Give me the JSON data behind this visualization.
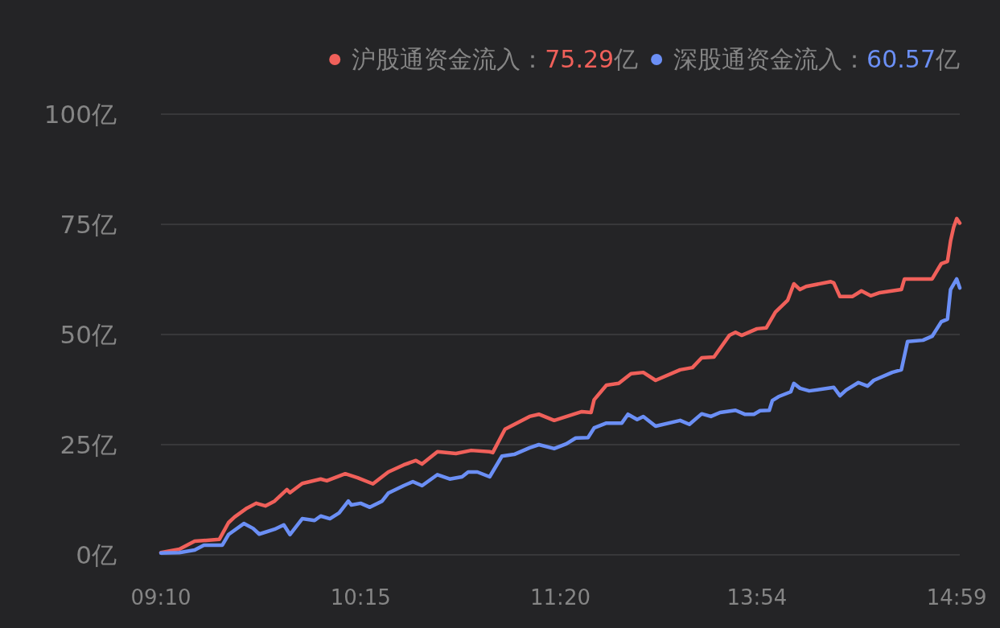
{
  "chart_data": {
    "type": "line",
    "categories": [
      "09:10",
      null,
      null,
      null,
      null,
      null,
      null,
      null,
      null,
      null,
      null,
      null,
      null,
      null,
      null,
      null,
      null,
      null,
      null,
      null,
      null,
      null,
      null,
      null,
      null,
      null,
      null,
      null,
      null,
      null,
      null,
      null,
      null,
      null,
      null,
      null,
      null,
      null,
      null,
      null,
      null,
      null,
      null,
      null,
      null,
      null,
      null,
      null,
      null,
      null,
      null,
      null,
      null,
      null,
      null,
      null,
      null,
      null,
      null,
      null,
      null,
      null,
      null,
      null,
      null,
      "10:15",
      null,
      null,
      null,
      null,
      null,
      null,
      null,
      null,
      null,
      null,
      null,
      null,
      null,
      null,
      null,
      null,
      null,
      null,
      null,
      null,
      null,
      null,
      null,
      null,
      null,
      null,
      null,
      null,
      null,
      null,
      null,
      null,
      null,
      null,
      null,
      null,
      null,
      null,
      null,
      null,
      null,
      null,
      null,
      null,
      null,
      null,
      null,
      null,
      null,
      null,
      null,
      null,
      null,
      null,
      null,
      null,
      null,
      null,
      null,
      null,
      null,
      null,
      null,
      null,
      "11:20",
      null,
      null,
      null,
      null,
      null,
      null,
      null,
      null,
      null,
      null,
      null,
      null,
      null,
      null,
      null,
      null,
      null,
      null,
      null,
      null,
      null,
      null,
      null,
      null,
      null,
      null,
      null,
      null,
      null,
      null,
      null,
      null,
      null,
      null,
      null,
      null,
      null,
      null,
      null,
      null,
      null,
      null,
      null,
      null,
      null,
      null,
      null,
      null,
      null,
      null,
      null,
      null,
      null,
      null,
      null,
      null,
      null,
      null,
      null,
      null,
      null,
      null,
      null,
      "13:54",
      null,
      null,
      null,
      null,
      null,
      null,
      null,
      null,
      null,
      null,
      null,
      null,
      null,
      null,
      null,
      null,
      null,
      null,
      null,
      null,
      null,
      null,
      null,
      null,
      null,
      null,
      null,
      null,
      null,
      null,
      null,
      null,
      null,
      null,
      null,
      null,
      null,
      null,
      null,
      null,
      null,
      null,
      null,
      null,
      null,
      null,
      null,
      null,
      null,
      null,
      null,
      null,
      null,
      null,
      null,
      null,
      null,
      null,
      null,
      null,
      null,
      null,
      null,
      null,
      "14:59",
      null
    ],
    "ylim": [
      0,
      100
    ],
    "yticks": [
      {
        "value": 0,
        "label": "0亿"
      },
      {
        "value": 25,
        "label": "25亿"
      },
      {
        "value": 50,
        "label": "50亿"
      },
      {
        "value": 75,
        "label": "75亿"
      },
      {
        "value": 100,
        "label": "100亿"
      }
    ],
    "grid": "y",
    "legend": "top right",
    "annotations": [
      "75.29亿",
      "60.57亿"
    ],
    "series": [
      {
        "name": "沪股通资金流入：",
        "color": "#f0605a",
        "values": [
          0.5,
          null,
          null,
          null,
          null,
          null,
          1.3,
          null,
          null,
          null,
          null,
          3.1,
          null,
          null,
          null,
          null,
          null,
          null,
          null,
          3.5,
          null,
          null,
          7.3,
          null,
          8.6,
          null,
          null,
          null,
          10.6,
          null,
          null,
          11.7,
          null,
          null,
          11.1,
          null,
          null,
          12.2,
          null,
          null,
          null,
          14.8,
          14.1,
          null,
          null,
          null,
          16.2,
          null,
          null,
          null,
          null,
          null,
          17.2,
          null,
          16.8,
          null,
          null,
          null,
          null,
          null,
          18.4,
          null,
          null,
          null,
          17.5,
          null,
          null,
          null,
          null,
          16.1,
          null,
          null,
          null,
          null,
          18.8,
          null,
          null,
          null,
          null,
          20.4,
          null,
          null,
          null,
          21.4,
          null,
          20.6,
          null,
          null,
          null,
          null,
          23.4,
          null,
          null,
          null,
          null,
          null,
          23.0,
          null,
          null,
          null,
          null,
          23.7,
          null,
          null,
          null,
          null,
          null,
          23.4,
          23.2,
          null,
          null,
          null,
          28.5,
          null,
          null,
          null,
          null,
          null,
          null,
          null,
          31.4,
          null,
          null,
          31.9,
          null,
          null,
          null,
          null,
          30.5,
          null,
          null,
          null,
          null,
          null,
          null,
          null,
          null,
          32.5,
          null,
          null,
          32.3,
          35.2,
          null,
          null,
          null,
          38.5,
          null,
          null,
          null,
          38.9,
          null,
          null,
          null,
          41.1,
          null,
          null,
          null,
          41.4,
          null,
          null,
          null,
          39.6,
          null,
          null,
          null,
          null,
          null,
          null,
          null,
          42.0,
          null,
          null,
          null,
          42.5,
          null,
          null,
          44.7,
          null,
          null,
          null,
          44.9,
          null,
          null,
          null,
          null,
          49.8,
          null,
          50.5,
          null,
          49.8,
          null,
          null,
          null,
          null,
          51.3,
          null,
          null,
          51.5,
          null,
          null,
          55.1,
          null,
          null,
          null,
          57.8,
          null,
          61.5,
          null,
          60.2,
          null,
          60.9,
          null,
          null,
          null,
          null,
          null,
          null,
          null,
          62.0,
          61.7,
          null,
          58.6,
          null,
          null,
          null,
          58.6,
          null,
          null,
          59.9,
          null,
          null,
          58.8,
          null,
          null,
          59.5,
          null,
          null,
          null,
          null,
          null,
          null,
          60.2,
          62.6,
          null,
          null,
          null,
          null,
          null,
          null,
          null,
          null,
          62.6,
          null,
          null,
          66.1,
          null,
          66.6,
          71.2,
          74.3,
          76.3,
          75.29
        ]
      },
      {
        "name": "深股通资金流入：",
        "color": "#6b8ff5",
        "values": [
          0.4,
          null,
          null,
          null,
          null,
          null,
          0.5,
          null,
          null,
          null,
          null,
          1.1,
          null,
          null,
          2.2,
          null,
          null,
          null,
          null,
          null,
          2.2,
          null,
          4.6,
          null,
          null,
          null,
          null,
          7.1,
          null,
          null,
          6.0,
          null,
          4.7,
          null,
          null,
          null,
          null,
          5.8,
          null,
          null,
          6.8,
          null,
          4.6,
          null,
          null,
          null,
          8.2,
          null,
          null,
          null,
          7.8,
          null,
          8.8,
          null,
          null,
          8.2,
          null,
          null,
          9.5,
          null,
          null,
          12.2,
          11.3,
          null,
          null,
          11.7,
          null,
          null,
          10.8,
          null,
          null,
          null,
          12.2,
          null,
          14.0,
          null,
          null,
          null,
          null,
          15.7,
          null,
          null,
          16.6,
          null,
          null,
          15.7,
          null,
          null,
          null,
          null,
          18.2,
          null,
          null,
          null,
          17.2,
          null,
          null,
          null,
          17.7,
          null,
          18.8,
          null,
          null,
          18.8,
          null,
          null,
          null,
          17.7,
          null,
          null,
          null,
          22.4,
          null,
          null,
          null,
          22.8,
          null,
          null,
          null,
          null,
          24.3,
          null,
          null,
          25.0,
          null,
          null,
          null,
          null,
          24.1,
          null,
          null,
          null,
          25.2,
          null,
          null,
          26.5,
          null,
          null,
          null,
          26.6,
          null,
          28.8,
          null,
          null,
          null,
          29.9,
          null,
          null,
          null,
          null,
          29.9,
          null,
          31.9,
          null,
          null,
          30.7,
          null,
          31.4,
          null,
          null,
          null,
          29.2,
          null,
          null,
          null,
          null,
          null,
          null,
          null,
          30.5,
          null,
          null,
          29.6,
          null,
          null,
          null,
          32.0,
          null,
          null,
          31.4,
          null,
          null,
          32.3,
          null,
          null,
          null,
          null,
          32.8,
          null,
          null,
          31.9,
          null,
          null,
          31.9,
          null,
          32.7,
          null,
          null,
          32.8,
          35.0,
          null,
          35.9,
          null,
          null,
          null,
          37.0,
          38.9,
          null,
          37.8,
          null,
          null,
          37.2,
          null,
          null,
          null,
          null,
          null,
          null,
          null,
          38.0,
          null,
          36.1,
          null,
          37.4,
          null,
          null,
          null,
          39.1,
          null,
          null,
          38.3,
          null,
          39.6,
          null,
          null,
          null,
          null,
          null,
          41.4,
          null,
          null,
          42.0,
          null,
          48.4,
          null,
          null,
          null,
          null,
          48.7,
          null,
          null,
          49.6,
          null,
          null,
          52.9,
          null,
          53.5,
          60.2,
          null,
          62.6,
          60.57
        ]
      }
    ]
  }
}
